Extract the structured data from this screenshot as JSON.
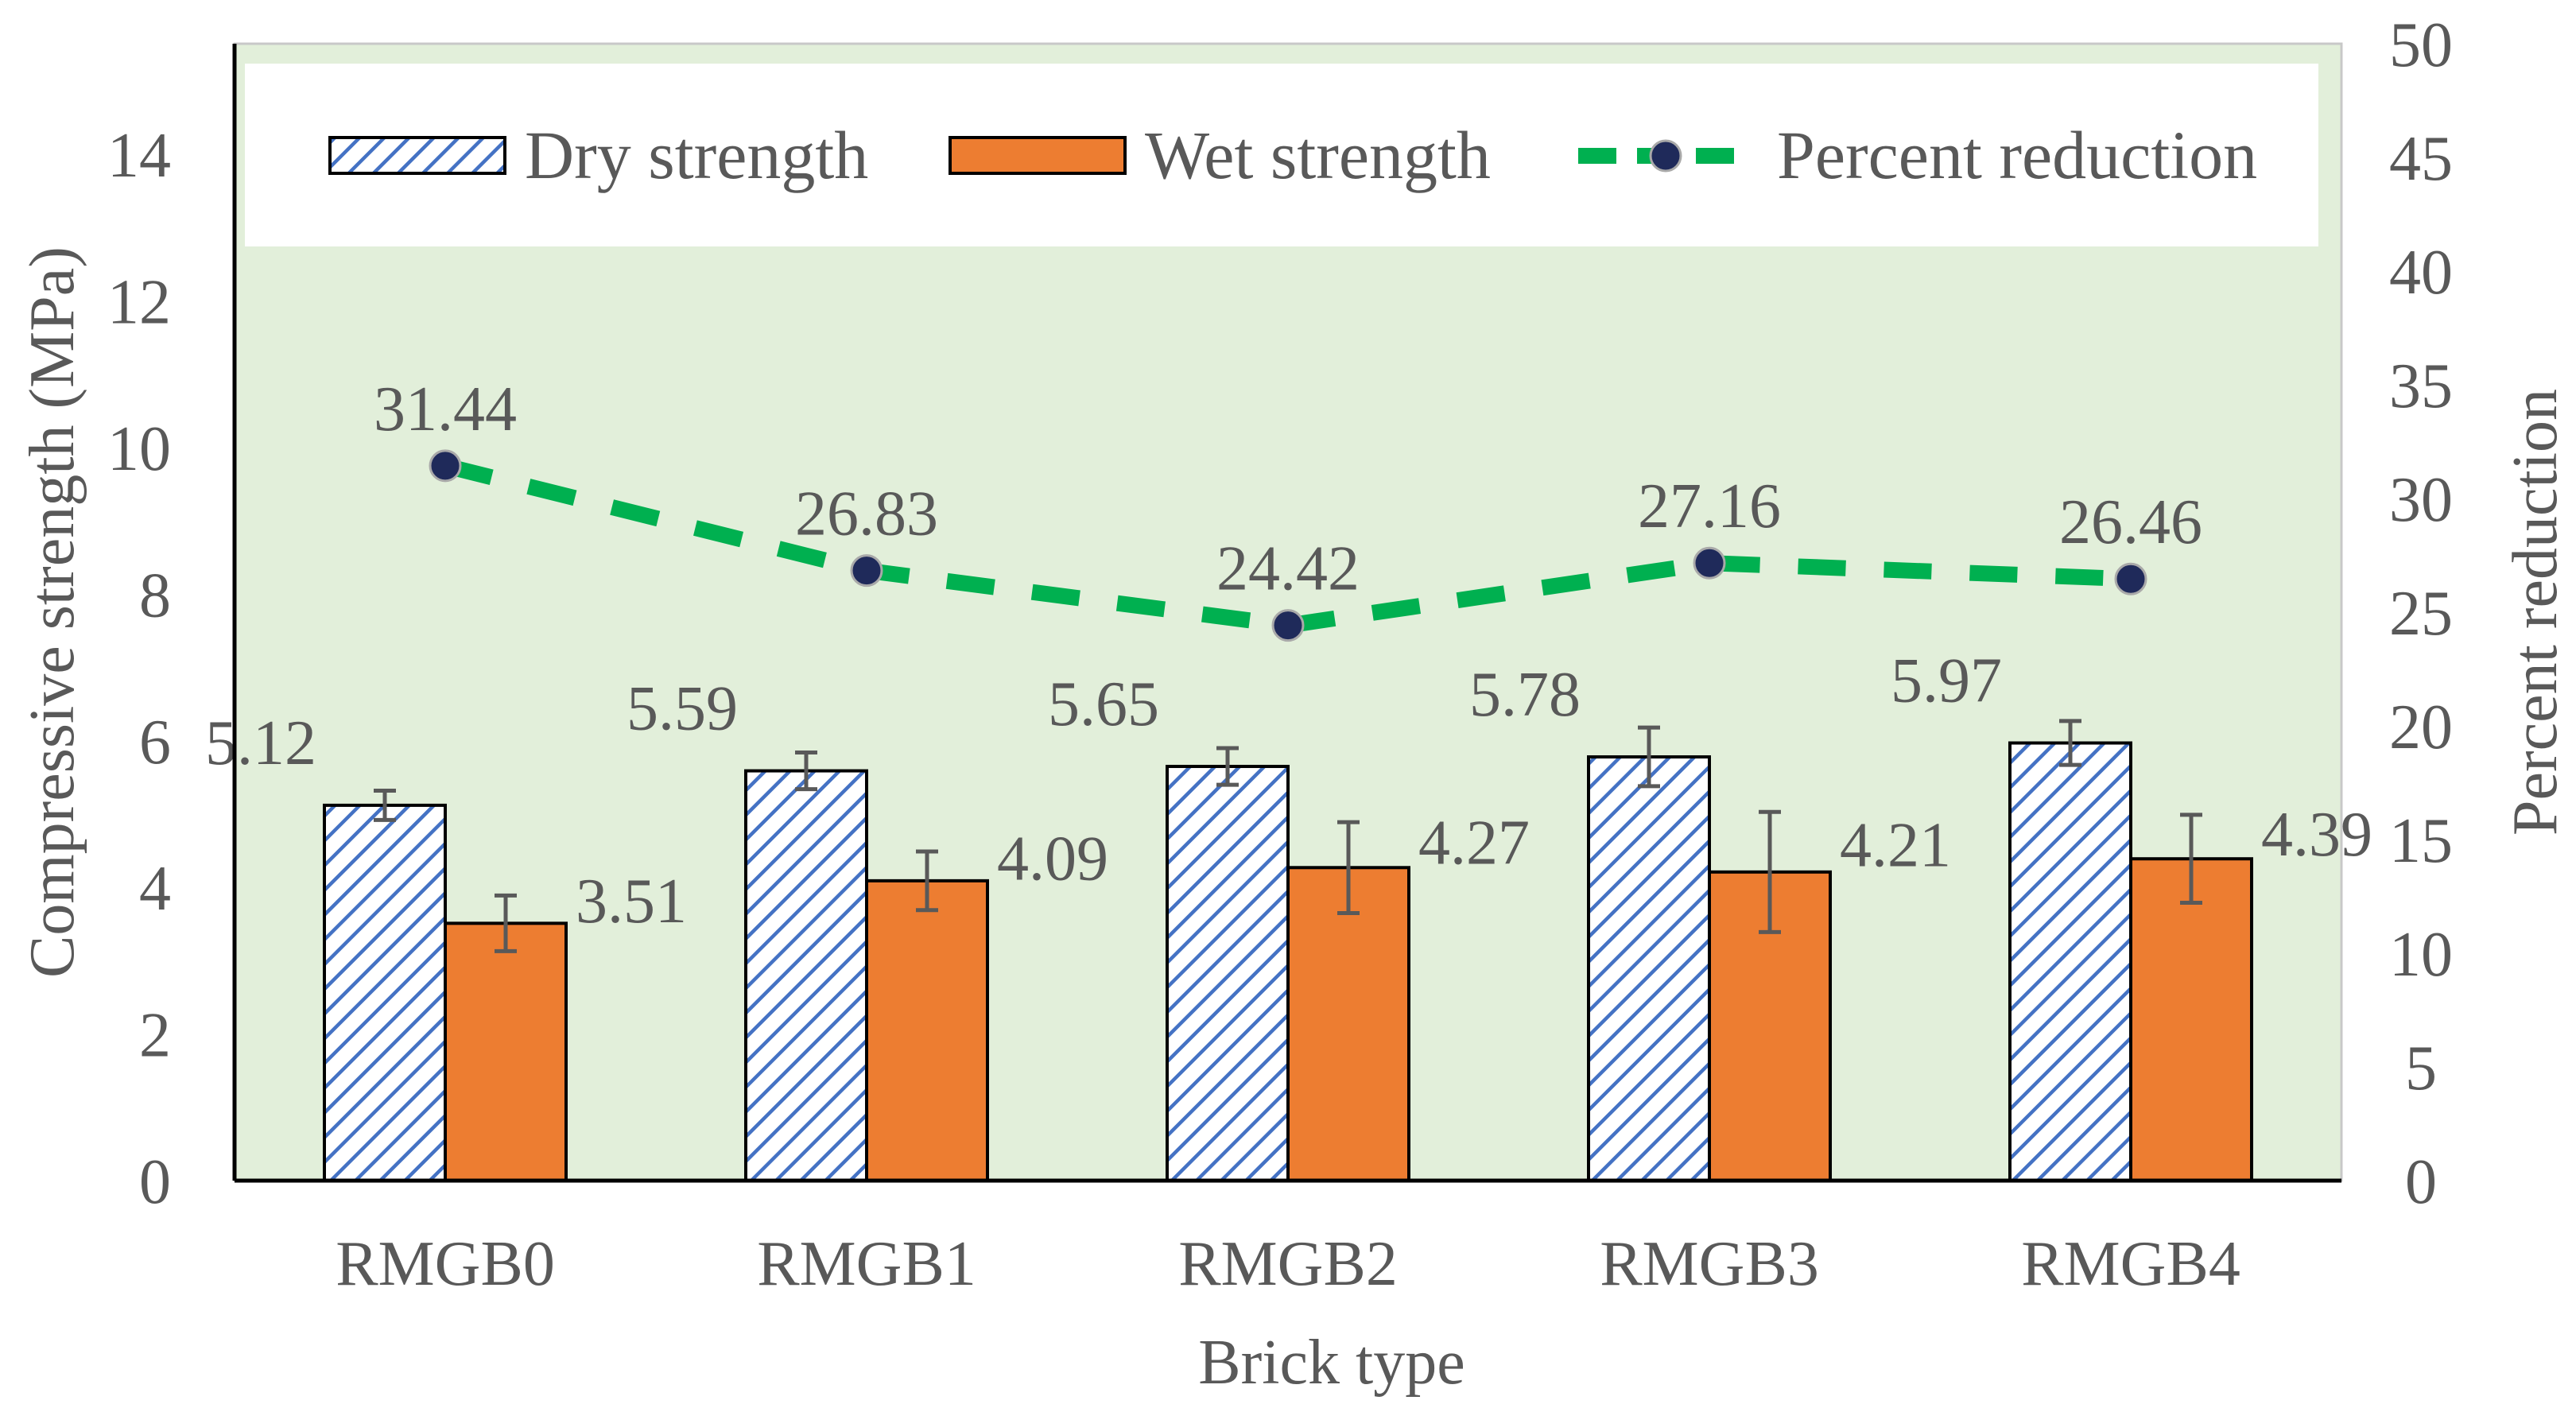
{
  "chart_data": {
    "type": "bar",
    "categories": [
      "RMGB0",
      "RMGB1",
      "RMGB2",
      "RMGB3",
      "RMGB4"
    ],
    "series": [
      {
        "name": "Dry strength",
        "axis": "left",
        "values": [
          5.12,
          5.59,
          5.65,
          5.78,
          5.97
        ],
        "error": [
          0.2,
          0.25,
          0.25,
          0.4,
          0.3
        ],
        "labels": [
          "5.12",
          "5.59",
          "5.65",
          "5.78",
          "5.97"
        ],
        "color": "#4472C4",
        "pattern": "diagonal-hatch"
      },
      {
        "name": "Wet strength",
        "axis": "left",
        "values": [
          3.51,
          4.09,
          4.27,
          4.21,
          4.39
        ],
        "error": [
          0.38,
          0.4,
          0.62,
          0.82,
          0.6
        ],
        "labels": [
          "3.51",
          "4.09",
          "4.27",
          "4.21",
          "4.39"
        ],
        "color": "#ED7D31"
      },
      {
        "name": "Percent reduction",
        "type": "line",
        "axis": "right",
        "values": [
          31.44,
          26.83,
          24.42,
          27.16,
          26.46
        ],
        "labels": [
          "31.44",
          "26.83",
          "24.42",
          "27.16",
          "26.46"
        ],
        "color": "#00B050",
        "marker_color": "#1F2A5A",
        "dash": "dashed"
      }
    ],
    "xlabel": "Brick type",
    "ylabel": "Compressive strength (MPa)",
    "y2label": "Percent reduction",
    "ylim": [
      0,
      15
    ],
    "y2lim": [
      0,
      50
    ],
    "yticks": [
      "0",
      "2",
      "4",
      "6",
      "8",
      "10",
      "12",
      "14"
    ],
    "y2ticks": [
      "0",
      "5",
      "10",
      "15",
      "20",
      "25",
      "30",
      "35",
      "40",
      "45",
      "50"
    ],
    "legend": "top",
    "grid": false,
    "plot_background": "#E2EFDA",
    "legend_background": "#FFFFFF"
  }
}
